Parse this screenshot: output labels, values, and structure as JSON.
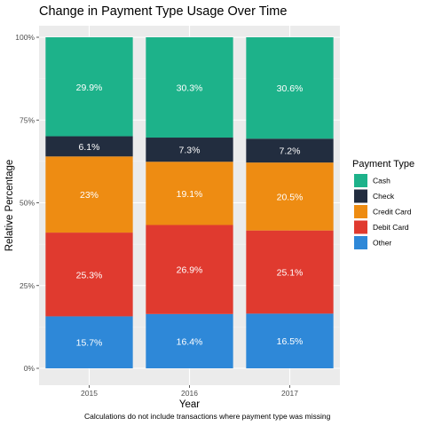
{
  "chart_data": {
    "type": "bar",
    "stacked": true,
    "normalized": true,
    "title": "Change in Payment Type Usage Over Time",
    "xlabel": "Year",
    "ylabel": "Relative Percentage",
    "caption": "Calculations do not include transactions where payment type was missing",
    "categories": [
      "2015",
      "2016",
      "2017"
    ],
    "y_ticks": [
      "0%",
      "25%",
      "50%",
      "75%",
      "100%"
    ],
    "ylim": [
      0,
      1
    ],
    "grid": true,
    "legend": {
      "title": "Payment Type",
      "placement": "right"
    },
    "series": [
      {
        "name": "Cash",
        "color": "#1db28a",
        "values": [
          29.9,
          30.3,
          30.6
        ],
        "labels": [
          "29.9%",
          "30.3%",
          "30.6%"
        ]
      },
      {
        "name": "Check",
        "color": "#222d3f",
        "values": [
          6.1,
          7.3,
          7.2
        ],
        "labels": [
          "6.1%",
          "7.3%",
          "7.2%"
        ]
      },
      {
        "name": "Credit Card",
        "color": "#ee8c12",
        "values": [
          23,
          19.1,
          20.5
        ],
        "labels": [
          "23%",
          "19.1%",
          "20.5%"
        ]
      },
      {
        "name": "Debit Card",
        "color": "#e03a2f",
        "values": [
          25.3,
          26.9,
          25.1
        ],
        "labels": [
          "25.3%",
          "26.9%",
          "25.1%"
        ]
      },
      {
        "name": "Other",
        "color": "#2e88d8",
        "values": [
          15.7,
          16.4,
          16.5
        ],
        "labels": [
          "15.7%",
          "16.4%",
          "16.5%"
        ]
      }
    ]
  }
}
